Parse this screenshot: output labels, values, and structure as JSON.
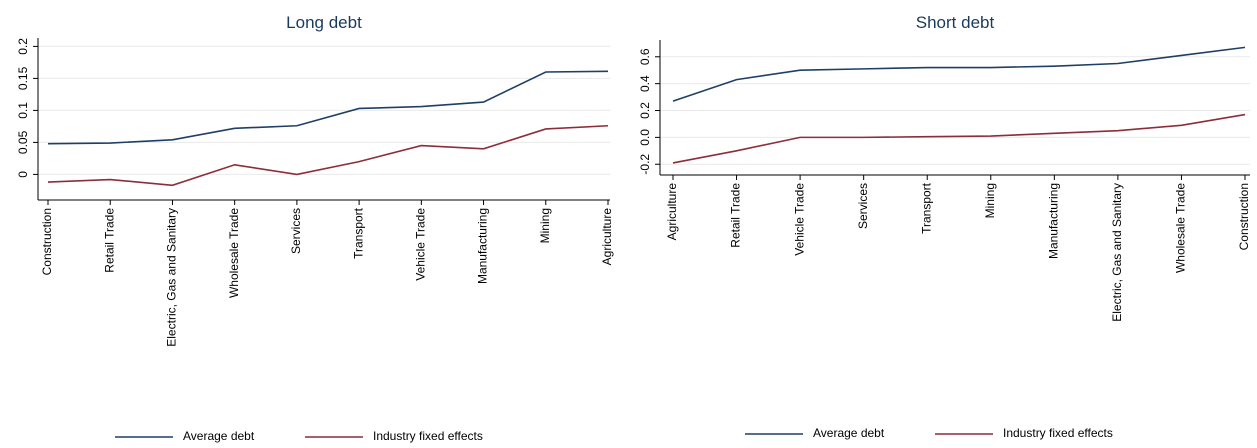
{
  "chart_data": [
    {
      "type": "line",
      "title": "Long debt",
      "categories": [
        "Construction",
        "Retail Trade",
        "Electric, Gas and Sanitary",
        "Wholesale Trade",
        "Services",
        "Transport",
        "Vehicle Trade",
        "Manufacturing",
        "Mining",
        "Agriculture"
      ],
      "series": [
        {
          "name": "Average debt",
          "color": "#1f3f66",
          "values": [
            0.048,
            0.049,
            0.054,
            0.072,
            0.076,
            0.103,
            0.106,
            0.113,
            0.16,
            0.161
          ]
        },
        {
          "name": "Industry fixed effects",
          "color": "#8c2d3a",
          "values": [
            -0.012,
            -0.008,
            -0.017,
            0.015,
            0,
            0.02,
            0.045,
            0.04,
            0.071,
            0.076
          ]
        }
      ],
      "ylim": [
        -0.04,
        0.21
      ],
      "yticks": [
        0,
        0.05,
        0.1,
        0.15,
        0.2
      ],
      "grid": true
    },
    {
      "type": "line",
      "title": "Short debt",
      "categories": [
        "Agriculture",
        "Retail Trade",
        "Vehicle Trade",
        "Services",
        "Transport",
        "Mining",
        "Manufacturing",
        "Electric, Gas and Sanitary",
        "Wholesale Trade",
        "Construction"
      ],
      "series": [
        {
          "name": "Average debt",
          "color": "#1f3f66",
          "values": [
            0.27,
            0.43,
            0.5,
            0.51,
            0.52,
            0.52,
            0.53,
            0.55,
            0.61,
            0.67
          ]
        },
        {
          "name": "Industry fixed effects",
          "color": "#8c2d3a",
          "values": [
            -0.19,
            -0.1,
            0,
            0,
            0.005,
            0.01,
            0.03,
            0.05,
            0.09,
            0.17
          ]
        }
      ],
      "ylim": [
        -0.28,
        0.71
      ],
      "yticks": [
        -0.2,
        {
          "value": 0,
          "label": "0.0"
        },
        0.2,
        0.4,
        0.6
      ],
      "grid": true
    }
  ]
}
